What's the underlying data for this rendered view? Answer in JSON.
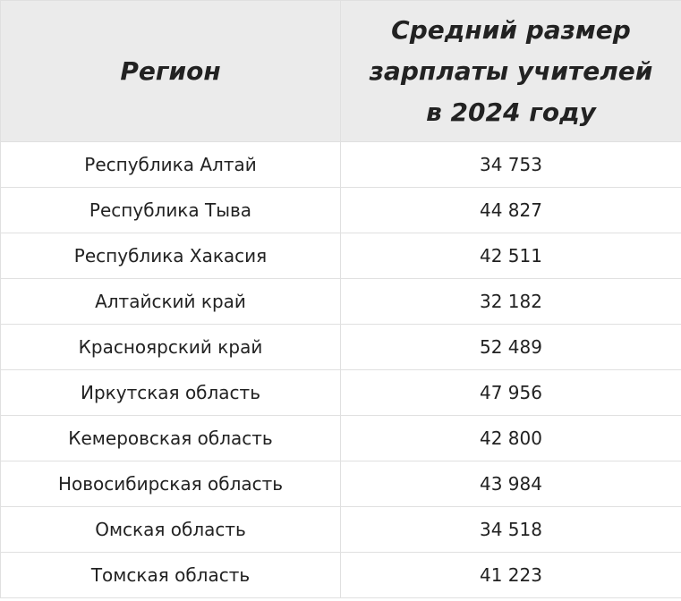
{
  "table": {
    "headers": [
      "Регион",
      "Средний размер зарплаты учителей в 2024 году"
    ],
    "rows": [
      [
        "Республика Алтай",
        "34 753"
      ],
      [
        "Республика Тыва",
        "44 827"
      ],
      [
        "Республика Хакасия",
        "42 511"
      ],
      [
        "Алтайский край",
        "32 182"
      ],
      [
        "Красноярский край",
        "52 489"
      ],
      [
        "Иркутская область",
        "47 956"
      ],
      [
        "Кемеровская область",
        "42 800"
      ],
      [
        "Новосибирская область",
        "43 984"
      ],
      [
        "Омская область",
        "34 518"
      ],
      [
        "Томская область",
        "41 223"
      ]
    ]
  }
}
